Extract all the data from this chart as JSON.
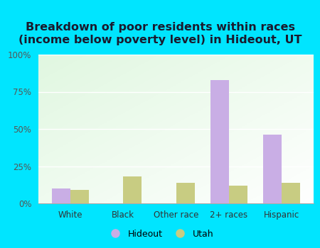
{
  "title": "Breakdown of poor residents within races\n(income below poverty level) in Hideout, UT",
  "categories": [
    "White",
    "Black",
    "Other race",
    "2+ races",
    "Hispanic"
  ],
  "hideout_values": [
    10.0,
    0.0,
    0.0,
    83.0,
    46.0
  ],
  "utah_values": [
    9.0,
    18.0,
    14.0,
    12.0,
    14.0
  ],
  "hideout_color": "#c9aee5",
  "utah_color": "#c8cc82",
  "background_outer": "#00e5ff",
  "ylim": [
    0,
    100
  ],
  "yticks": [
    0,
    25,
    50,
    75,
    100
  ],
  "ytick_labels": [
    "0%",
    "25%",
    "50%",
    "75%",
    "100%"
  ],
  "legend_hideout": "Hideout",
  "legend_utah": "Utah",
  "bar_width": 0.35,
  "title_fontsize": 11.5,
  "tick_fontsize": 8.5,
  "legend_fontsize": 9
}
